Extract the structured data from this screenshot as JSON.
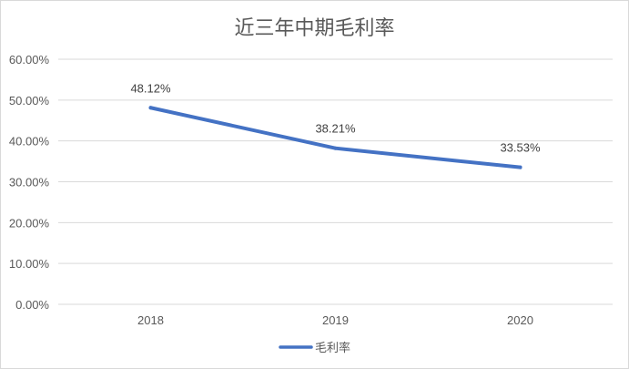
{
  "chart_data": {
    "type": "line",
    "title": "近三年中期毛利率",
    "categories": [
      "2018",
      "2019",
      "2020"
    ],
    "series": [
      {
        "name": "毛利率",
        "values": [
          48.12,
          38.21,
          33.53
        ],
        "color": "#4472c4"
      }
    ],
    "data_labels": [
      "48.12%",
      "38.21%",
      "33.53%"
    ],
    "ylim": [
      0,
      60
    ],
    "yticks": [
      0,
      10,
      20,
      30,
      40,
      50,
      60
    ],
    "ytick_labels": [
      "0.00%",
      "10.00%",
      "20.00%",
      "30.00%",
      "40.00%",
      "50.00%",
      "60.00%"
    ],
    "grid": true,
    "legend_position": "bottom",
    "colors": {
      "line": "#4472c4",
      "grid": "#d9d9d9",
      "text": "#595959"
    }
  }
}
